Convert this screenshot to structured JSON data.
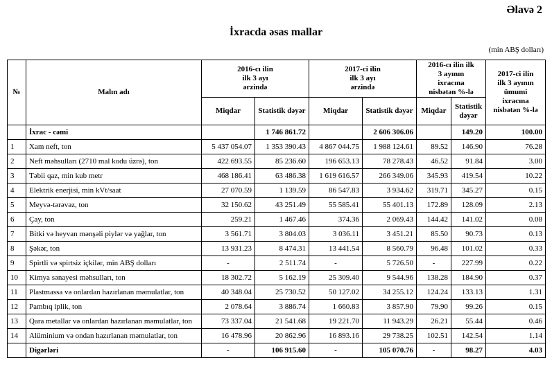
{
  "header": {
    "appendix": "Əlavə 2",
    "title": "İxracda əsas mallar",
    "unit": "(min ABŞ dolları)"
  },
  "table": {
    "columns": {
      "no": "№",
      "name": "Malın adı",
      "y2016": "2016-cı ilin ilk 3 ayı ərzində",
      "y2017": "2017-ci ilin ilk 3 ayı ərzində",
      "ratio": "2016-cı ilin ilk 3 ayının ixracına nisbətən %-lə",
      "share": "2017-ci ilin ilk 3 ayının ümumi ixracına nisbətən %-lə",
      "sub": [
        "Miqdar",
        "Statistik dəyər",
        "Miqdar",
        "Statistik dəyər",
        "Miqdar",
        "Statistik dəyər"
      ]
    },
    "rows": [
      [
        null,
        "İxrac - cəmi",
        null,
        "1 746 861.72",
        null,
        "2 606 306.06",
        null,
        "149.20",
        "100.00"
      ],
      [
        "1",
        "Xam neft, ton",
        "5 437 054.07",
        "1 353 390.43",
        "4 867 044.75",
        "1 988 124.61",
        "89.52",
        "146.90",
        "76.28"
      ],
      [
        "2",
        "Neft məhsulları (2710 mal kodu üzrə), ton",
        "422 693.55",
        "85 236.60",
        "196 653.13",
        "78 278.43",
        "46.52",
        "91.84",
        "3.00"
      ],
      [
        "3",
        "Təbii qaz, min kub metr",
        "468 186.41",
        "63 486.38",
        "1 619 616.57",
        "266 349.06",
        "345.93",
        "419.54",
        "10.22"
      ],
      [
        "4",
        "Elektrik enerjisi, min kVt/saat",
        "27 070.59",
        "1 139.59",
        "86 547.83",
        "3 934.62",
        "319.71",
        "345.27",
        "0.15"
      ],
      [
        "5",
        "Meyvə-tərəvəz, ton",
        "32 150.62",
        "43 251.49",
        "55 585.41",
        "55 401.13",
        "172.89",
        "128.09",
        "2.13"
      ],
      [
        "6",
        "Çay, ton",
        "259.21",
        "1 467.46",
        "374.36",
        "2 069.43",
        "144.42",
        "141.02",
        "0.08"
      ],
      [
        "7",
        "Bitki və heyvan mənşəli piylər və yağlar, ton",
        "3 561.71",
        "3 804.03",
        "3 036.11",
        "3 451.21",
        "85.50",
        "90.73",
        "0.13"
      ],
      [
        "8",
        "Şəkər, ton",
        "13 931.23",
        "8 474.31",
        "13 441.54",
        "8 560.79",
        "96.48",
        "101.02",
        "0.33"
      ],
      [
        "9",
        "Spirtli və spirtsiz içkilər, min ABŞ dolları",
        "-",
        "2 511.74",
        "-",
        "5 726.50",
        "-",
        "227.99",
        "0.22"
      ],
      [
        "10",
        "Kimya sənayesi məhsulları, ton",
        "18 302.72",
        "5 162.19",
        "25 309.40",
        "9 544.96",
        "138.28",
        "184.90",
        "0.37"
      ],
      [
        "11",
        "Plastmassa və onlardan hazırlanan məmulatlar, ton",
        "40 348.04",
        "25 730.52",
        "50 127.02",
        "34 255.12",
        "124.24",
        "133.13",
        "1.31"
      ],
      [
        "12",
        "Pambıq iplik, ton",
        "2 078.64",
        "3 886.74",
        "1 660.83",
        "3 857.90",
        "79.90",
        "99.26",
        "0.15"
      ],
      [
        "13",
        "Qara metallar və onlardan hazırlanan məmulatlar, ton",
        "73 337.04",
        "21 541.68",
        "19 221.70",
        "11 943.29",
        "26.21",
        "55.44",
        "0.46"
      ],
      [
        "14",
        "Alüminium və ondan hazırlanan məmulatlar, ton",
        "16 478.96",
        "20 862.96",
        "16 893.16",
        "29 738.25",
        "102.51",
        "142.54",
        "1.14"
      ],
      [
        null,
        "Digərləri",
        "-",
        "106 915.60",
        "-",
        "105 070.76",
        "-",
        "98.27",
        "4.03"
      ]
    ]
  }
}
